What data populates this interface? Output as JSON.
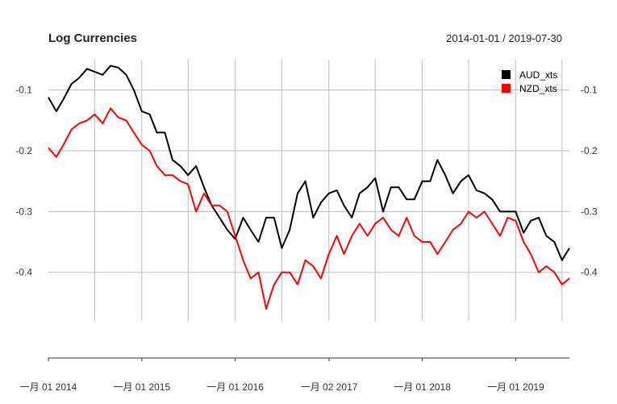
{
  "chart_data": {
    "type": "line",
    "title": "Log Currencies",
    "date_range": "2014-01-01 / 2019-07-30",
    "xlabel": "",
    "ylabel": "",
    "x_ticks": [
      "一月 01 2014",
      "一月 01 2015",
      "一月 01 2016",
      "一月 02 2017",
      "一月 01 2018",
      "一月 01 2019"
    ],
    "x_tick_values": [
      "2014-01-01",
      "2015-01-01",
      "2016-01-01",
      "2017-01-02",
      "2018-01-01",
      "2019-01-01"
    ],
    "x_range": [
      "2014-01-01",
      "2019-07-30"
    ],
    "ylim": [
      -0.48,
      -0.05
    ],
    "y_ticks": [
      -0.1,
      -0.2,
      -0.3,
      -0.4
    ],
    "y_tick_labels": [
      "-0.1",
      "-0.2",
      "-0.3",
      "-0.4"
    ],
    "grid": true,
    "legend_position": "top-right",
    "series": [
      {
        "name": "AUD_xts",
        "color": "#000000",
        "points": [
          [
            "2014-01-01",
            -0.112
          ],
          [
            "2014-02-01",
            -0.135
          ],
          [
            "2014-03-01",
            -0.115
          ],
          [
            "2014-04-01",
            -0.09
          ],
          [
            "2014-05-01",
            -0.08
          ],
          [
            "2014-06-01",
            -0.065
          ],
          [
            "2014-07-01",
            -0.07
          ],
          [
            "2014-08-01",
            -0.075
          ],
          [
            "2014-09-01",
            -0.06
          ],
          [
            "2014-10-01",
            -0.063
          ],
          [
            "2014-11-01",
            -0.075
          ],
          [
            "2014-12-01",
            -0.1
          ],
          [
            "2015-01-01",
            -0.135
          ],
          [
            "2015-02-01",
            -0.14
          ],
          [
            "2015-03-01",
            -0.17
          ],
          [
            "2015-04-01",
            -0.17
          ],
          [
            "2015-05-01",
            -0.215
          ],
          [
            "2015-06-01",
            -0.225
          ],
          [
            "2015-07-01",
            -0.24
          ],
          [
            "2015-08-01",
            -0.225
          ],
          [
            "2015-09-01",
            -0.26
          ],
          [
            "2015-10-01",
            -0.29
          ],
          [
            "2015-11-01",
            -0.31
          ],
          [
            "2015-12-01",
            -0.33
          ],
          [
            "2016-01-01",
            -0.345
          ],
          [
            "2016-02-01",
            -0.31
          ],
          [
            "2016-03-01",
            -0.33
          ],
          [
            "2016-04-01",
            -0.35
          ],
          [
            "2016-05-01",
            -0.31
          ],
          [
            "2016-06-01",
            -0.31
          ],
          [
            "2016-07-01",
            -0.36
          ],
          [
            "2016-08-01",
            -0.33
          ],
          [
            "2016-09-01",
            -0.27
          ],
          [
            "2016-10-01",
            -0.25
          ],
          [
            "2016-11-01",
            -0.31
          ],
          [
            "2016-12-01",
            -0.285
          ],
          [
            "2017-01-01",
            -0.27
          ],
          [
            "2017-02-01",
            -0.265
          ],
          [
            "2017-03-01",
            -0.29
          ],
          [
            "2017-04-01",
            -0.31
          ],
          [
            "2017-05-01",
            -0.27
          ],
          [
            "2017-06-01",
            -0.26
          ],
          [
            "2017-07-01",
            -0.245
          ],
          [
            "2017-08-01",
            -0.3
          ],
          [
            "2017-09-01",
            -0.26
          ],
          [
            "2017-10-01",
            -0.26
          ],
          [
            "2017-11-01",
            -0.28
          ],
          [
            "2017-12-01",
            -0.28
          ],
          [
            "2018-01-01",
            -0.25
          ],
          [
            "2018-02-01",
            -0.25
          ],
          [
            "2018-03-01",
            -0.215
          ],
          [
            "2018-04-01",
            -0.24
          ],
          [
            "2018-05-01",
            -0.27
          ],
          [
            "2018-06-01",
            -0.25
          ],
          [
            "2018-07-01",
            -0.24
          ],
          [
            "2018-08-01",
            -0.265
          ],
          [
            "2018-09-01",
            -0.27
          ],
          [
            "2018-10-01",
            -0.28
          ],
          [
            "2018-11-01",
            -0.3
          ],
          [
            "2018-12-01",
            -0.3
          ],
          [
            "2019-01-01",
            -0.3
          ],
          [
            "2019-02-01",
            -0.335
          ],
          [
            "2019-03-01",
            -0.315
          ],
          [
            "2019-04-01",
            -0.31
          ],
          [
            "2019-05-01",
            -0.34
          ],
          [
            "2019-06-01",
            -0.35
          ],
          [
            "2019-07-01",
            -0.38
          ],
          [
            "2019-07-30",
            -0.36
          ]
        ]
      },
      {
        "name": "NZD_xts",
        "color": "#ff0000",
        "points": [
          [
            "2014-01-01",
            -0.195
          ],
          [
            "2014-02-01",
            -0.21
          ],
          [
            "2014-03-01",
            -0.19
          ],
          [
            "2014-04-01",
            -0.165
          ],
          [
            "2014-05-01",
            -0.155
          ],
          [
            "2014-06-01",
            -0.15
          ],
          [
            "2014-07-01",
            -0.14
          ],
          [
            "2014-08-01",
            -0.155
          ],
          [
            "2014-09-01",
            -0.13
          ],
          [
            "2014-10-01",
            -0.145
          ],
          [
            "2014-11-01",
            -0.15
          ],
          [
            "2014-12-01",
            -0.17
          ],
          [
            "2015-01-01",
            -0.19
          ],
          [
            "2015-02-01",
            -0.2
          ],
          [
            "2015-03-01",
            -0.225
          ],
          [
            "2015-04-01",
            -0.24
          ],
          [
            "2015-05-01",
            -0.24
          ],
          [
            "2015-06-01",
            -0.25
          ],
          [
            "2015-07-01",
            -0.255
          ],
          [
            "2015-08-01",
            -0.3
          ],
          [
            "2015-09-01",
            -0.27
          ],
          [
            "2015-10-01",
            -0.29
          ],
          [
            "2015-11-01",
            -0.29
          ],
          [
            "2015-12-01",
            -0.3
          ],
          [
            "2016-01-01",
            -0.34
          ],
          [
            "2016-02-01",
            -0.38
          ],
          [
            "2016-03-01",
            -0.41
          ],
          [
            "2016-04-01",
            -0.4
          ],
          [
            "2016-05-01",
            -0.46
          ],
          [
            "2016-06-01",
            -0.42
          ],
          [
            "2016-07-01",
            -0.4
          ],
          [
            "2016-08-01",
            -0.4
          ],
          [
            "2016-09-01",
            -0.42
          ],
          [
            "2016-10-01",
            -0.38
          ],
          [
            "2016-11-01",
            -0.39
          ],
          [
            "2016-12-01",
            -0.41
          ],
          [
            "2017-01-01",
            -0.37
          ],
          [
            "2017-02-01",
            -0.34
          ],
          [
            "2017-03-01",
            -0.37
          ],
          [
            "2017-04-01",
            -0.34
          ],
          [
            "2017-05-01",
            -0.32
          ],
          [
            "2017-06-01",
            -0.34
          ],
          [
            "2017-07-01",
            -0.32
          ],
          [
            "2017-08-01",
            -0.31
          ],
          [
            "2017-09-01",
            -0.33
          ],
          [
            "2017-10-01",
            -0.34
          ],
          [
            "2017-11-01",
            -0.31
          ],
          [
            "2017-12-01",
            -0.34
          ],
          [
            "2018-01-01",
            -0.35
          ],
          [
            "2018-02-01",
            -0.35
          ],
          [
            "2018-03-01",
            -0.37
          ],
          [
            "2018-04-01",
            -0.35
          ],
          [
            "2018-05-01",
            -0.33
          ],
          [
            "2018-06-01",
            -0.32
          ],
          [
            "2018-07-01",
            -0.3
          ],
          [
            "2018-08-01",
            -0.31
          ],
          [
            "2018-09-01",
            -0.3
          ],
          [
            "2018-10-01",
            -0.32
          ],
          [
            "2018-11-01",
            -0.34
          ],
          [
            "2018-12-01",
            -0.31
          ],
          [
            "2019-01-01",
            -0.315
          ],
          [
            "2019-02-01",
            -0.35
          ],
          [
            "2019-03-01",
            -0.37
          ],
          [
            "2019-04-01",
            -0.4
          ],
          [
            "2019-05-01",
            -0.39
          ],
          [
            "2019-06-01",
            -0.4
          ],
          [
            "2019-07-01",
            -0.42
          ],
          [
            "2019-07-30",
            -0.41
          ]
        ]
      }
    ]
  }
}
